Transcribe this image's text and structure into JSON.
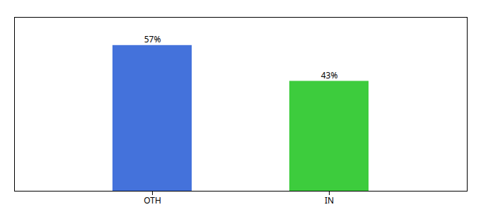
{
  "chart_data": {
    "type": "bar",
    "categories": [
      "OTH",
      "IN"
    ],
    "values": [
      57,
      43
    ],
    "value_labels": [
      "57%",
      "43%"
    ],
    "colors": [
      "#4472db",
      "#3dcc3d"
    ],
    "ylim": [
      0,
      68
    ],
    "data_labels": true,
    "tick_labels": "x",
    "grid": false
  }
}
